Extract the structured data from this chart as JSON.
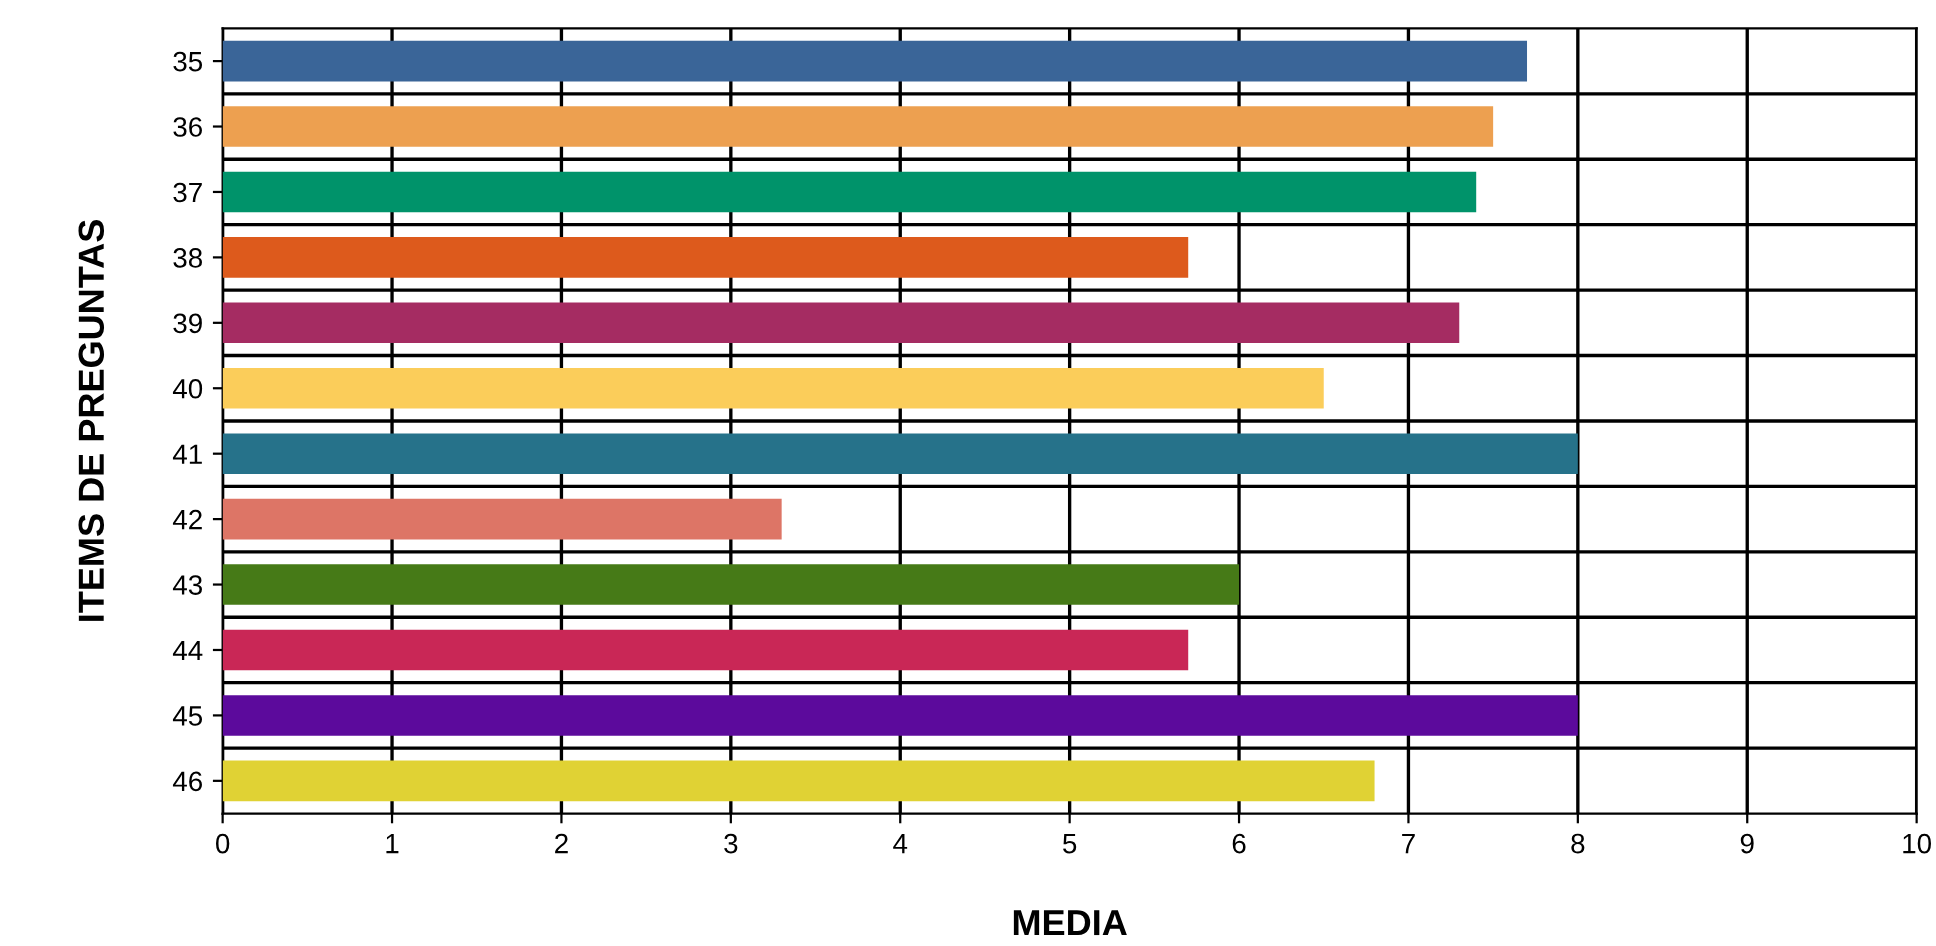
{
  "chart_data": {
    "type": "bar",
    "orientation": "horizontal",
    "xlabel": "MEDIA",
    "ylabel": "ITEMS DE PREGUNTAS",
    "categories": [
      "35",
      "36",
      "37",
      "38",
      "39",
      "40",
      "41",
      "42",
      "43",
      "44",
      "45",
      "46"
    ],
    "values": [
      7.7,
      7.5,
      7.4,
      5.7,
      7.3,
      6.5,
      8.0,
      3.3,
      6.0,
      5.7,
      8.0,
      6.8
    ],
    "colors": [
      "#3a6598",
      "#eda050",
      "#00936a",
      "#dd5a1c",
      "#a52c62",
      "#fbcd5a",
      "#26728a",
      "#dd7566",
      "#467a17",
      "#c92756",
      "#5c0a9c",
      "#e0d234"
    ],
    "xlim": [
      0,
      10
    ],
    "xticks": [
      0,
      1,
      2,
      3,
      4,
      5,
      6,
      7,
      8,
      9,
      10
    ],
    "grid": true
  }
}
